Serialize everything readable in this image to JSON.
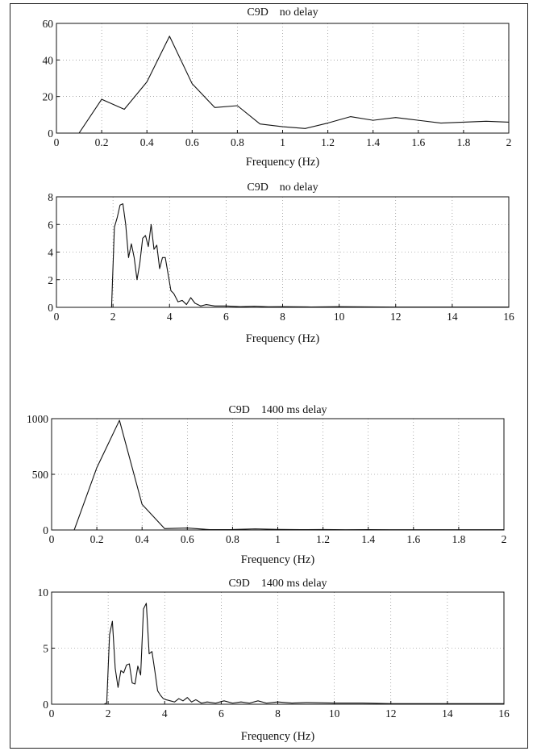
{
  "chart_data": [
    {
      "type": "line",
      "title": "C9D    no delay",
      "xlabel": "Frequency (Hz)",
      "ylabel": "",
      "xlim": [
        0,
        2
      ],
      "ylim": [
        0,
        60
      ],
      "xticks": [
        0,
        0.2,
        0.4,
        0.6,
        0.8,
        1,
        1.2,
        1.4,
        1.6,
        1.8,
        2
      ],
      "xtick_labels": [
        "0",
        "0.2",
        "0.4",
        "0.6",
        "0.8",
        "1",
        "1.2",
        "1.4",
        "1.6",
        "1.8",
        "2"
      ],
      "yticks": [
        0,
        20,
        40,
        60
      ],
      "ytick_labels": [
        "0",
        "20",
        "40",
        "60"
      ],
      "grid": true,
      "series": [
        {
          "x": [
            0.1,
            0.2,
            0.3,
            0.4,
            0.5,
            0.6,
            0.7,
            0.8,
            0.9,
            1.0,
            1.1,
            1.2,
            1.3,
            1.4,
            1.5,
            1.6,
            1.7,
            1.8,
            1.9,
            2.0
          ],
          "y": [
            0,
            18.5,
            13,
            28,
            53,
            27,
            14,
            15,
            5,
            3.5,
            2.5,
            5.5,
            9,
            7,
            8.5,
            7,
            5.5,
            6,
            6.5,
            6
          ]
        }
      ]
    },
    {
      "type": "line",
      "title": "C9D    no delay",
      "xlabel": "Frequency (Hz)",
      "ylabel": "",
      "xlim": [
        0,
        16
      ],
      "ylim": [
        0,
        8
      ],
      "xticks": [
        0,
        2,
        4,
        6,
        8,
        10,
        12,
        14,
        16
      ],
      "xtick_labels": [
        "0",
        "2",
        "4",
        "6",
        "8",
        "10",
        "12",
        "14",
        "16"
      ],
      "yticks": [
        0,
        2,
        4,
        6,
        8
      ],
      "ytick_labels": [
        "0",
        "2",
        "4",
        "6",
        "8"
      ],
      "grid": true,
      "series": [
        {
          "x": [
            0,
            1.9,
            1.95,
            2.05,
            2.15,
            2.25,
            2.35,
            2.45,
            2.55,
            2.65,
            2.75,
            2.85,
            2.95,
            3.05,
            3.15,
            3.25,
            3.35,
            3.45,
            3.55,
            3.65,
            3.75,
            3.85,
            3.95,
            4.05,
            4.15,
            4.3,
            4.45,
            4.6,
            4.75,
            4.9,
            5.1,
            5.3,
            5.6,
            6,
            6.5,
            7,
            7.5,
            8,
            9,
            10,
            12,
            14,
            16
          ],
          "y": [
            0,
            0,
            0,
            5.8,
            6.5,
            7.4,
            7.5,
            6,
            3.6,
            4.6,
            3.6,
            2,
            3.2,
            5,
            5.2,
            4.4,
            6,
            4.2,
            4.5,
            2.8,
            3.6,
            3.6,
            2.4,
            1.2,
            1.0,
            0.4,
            0.5,
            0.2,
            0.7,
            0.3,
            0.1,
            0.2,
            0.1,
            0.1,
            0.05,
            0.08,
            0.04,
            0.05,
            0.03,
            0.05,
            0.02,
            0.02,
            0.02
          ]
        }
      ]
    },
    {
      "type": "line",
      "title": "C9D    1400 ms delay",
      "xlabel": "Frequency (Hz)",
      "ylabel": "",
      "xlim": [
        0,
        2
      ],
      "ylim": [
        0,
        1000
      ],
      "xticks": [
        0,
        0.2,
        0.4,
        0.6,
        0.8,
        1,
        1.2,
        1.4,
        1.6,
        1.8,
        2
      ],
      "xtick_labels": [
        "0",
        "0.2",
        "0.4",
        "0.6",
        "0.8",
        "1",
        "1.2",
        "1.4",
        "1.6",
        "1.8",
        "2"
      ],
      "yticks": [
        0,
        500,
        1000
      ],
      "ytick_labels": [
        "0",
        "500",
        "1000"
      ],
      "grid": true,
      "series": [
        {
          "x": [
            0.1,
            0.2,
            0.3,
            0.4,
            0.5,
            0.6,
            0.7,
            0.8,
            0.9,
            1.0,
            1.1,
            1.2,
            1.3,
            1.4,
            1.5,
            1.6,
            1.7,
            1.8,
            1.9,
            2.0
          ],
          "y": [
            0,
            560,
            985,
            230,
            12,
            18,
            3,
            4,
            10,
            5,
            3,
            4,
            2,
            3,
            2,
            2,
            2,
            2,
            2,
            2
          ]
        }
      ]
    },
    {
      "type": "line",
      "title": "C9D    1400 ms delay",
      "xlabel": "Frequency (Hz)",
      "ylabel": "",
      "xlim": [
        0,
        16
      ],
      "ylim": [
        0,
        10
      ],
      "xticks": [
        0,
        2,
        4,
        6,
        8,
        10,
        12,
        14,
        16
      ],
      "xtick_labels": [
        "0",
        "2",
        "4",
        "6",
        "8",
        "10",
        "12",
        "14",
        "16"
      ],
      "yticks": [
        0,
        5,
        10
      ],
      "ytick_labels": [
        "0",
        "5",
        "10"
      ],
      "grid": true,
      "series": [
        {
          "x": [
            0,
            1.85,
            1.95,
            2.05,
            2.15,
            2.25,
            2.35,
            2.45,
            2.55,
            2.65,
            2.75,
            2.85,
            2.95,
            3.05,
            3.15,
            3.25,
            3.35,
            3.45,
            3.55,
            3.65,
            3.75,
            3.85,
            3.95,
            4.05,
            4.2,
            4.35,
            4.5,
            4.65,
            4.8,
            4.95,
            5.1,
            5.3,
            5.5,
            5.8,
            6.1,
            6.4,
            6.7,
            7.0,
            7.3,
            7.6,
            8.0,
            8.5,
            9.0,
            10,
            11,
            12,
            13,
            14,
            16
          ],
          "y": [
            0,
            0,
            0.1,
            6.2,
            7.4,
            3.2,
            1.5,
            3.0,
            2.8,
            3.5,
            3.6,
            1.9,
            1.8,
            3.4,
            2.6,
            8.5,
            9.0,
            4.5,
            4.7,
            3.0,
            1.2,
            0.8,
            0.5,
            0.4,
            0.3,
            0.2,
            0.5,
            0.3,
            0.6,
            0.2,
            0.4,
            0.1,
            0.2,
            0.1,
            0.3,
            0.1,
            0.2,
            0.1,
            0.3,
            0.1,
            0.2,
            0.1,
            0.15,
            0.1,
            0.1,
            0.05,
            0.05,
            0.05,
            0.05
          ]
        }
      ]
    }
  ]
}
